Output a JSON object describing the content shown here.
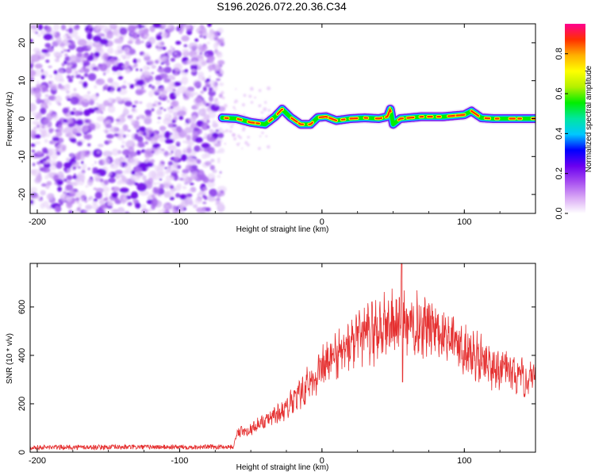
{
  "title": "S196.2026.072.20.36.C34",
  "chart_data": [
    {
      "type": "heatmap",
      "name": "spectrogram",
      "xlabel": "Height of straight line (km)",
      "ylabel": "Frequency (Hz)",
      "xlim": [
        -205,
        150
      ],
      "ylim": [
        -25,
        25
      ],
      "xticks": [
        "-200",
        "-100",
        "0",
        "100"
      ],
      "yticks": [
        "20",
        "10",
        "0",
        "-10",
        "-20"
      ],
      "colorbar": {
        "label": "Normalized spectral amplitude",
        "range": [
          0,
          0.95
        ],
        "ticks": [
          "0.0",
          "0.2",
          "0.4",
          "0.6",
          "0.8"
        ]
      },
      "noise_region_x": [
        -205,
        -70
      ],
      "signal_start_x": -70,
      "carrier_track": [
        {
          "x": -70,
          "f": 0.2
        },
        {
          "x": -60,
          "f": 0.0
        },
        {
          "x": -50,
          "f": -1.0
        },
        {
          "x": -40,
          "f": -1.5
        },
        {
          "x": -33,
          "f": 0.5
        },
        {
          "x": -28,
          "f": 2.5
        },
        {
          "x": -22,
          "f": 0.3
        },
        {
          "x": -15,
          "f": -1.5
        },
        {
          "x": -8,
          "f": -1.5
        },
        {
          "x": -3,
          "f": 0.3
        },
        {
          "x": 3,
          "f": 0.5
        },
        {
          "x": 10,
          "f": -0.5
        },
        {
          "x": 20,
          "f": 0.0
        },
        {
          "x": 30,
          "f": 0.2
        },
        {
          "x": 40,
          "f": 0.0
        },
        {
          "x": 46,
          "f": 0.5
        },
        {
          "x": 48,
          "f": 2.5
        },
        {
          "x": 50,
          "f": -1.5
        },
        {
          "x": 55,
          "f": 0.0
        },
        {
          "x": 70,
          "f": 0.5
        },
        {
          "x": 85,
          "f": 0.5
        },
        {
          "x": 100,
          "f": 1.0
        },
        {
          "x": 105,
          "f": 2.0
        },
        {
          "x": 112,
          "f": 0.2
        },
        {
          "x": 120,
          "f": 0.0
        },
        {
          "x": 135,
          "f": 0.0
        },
        {
          "x": 150,
          "f": 0.0
        }
      ]
    },
    {
      "type": "line",
      "name": "snr",
      "xlabel": "Height of straight line (km)",
      "ylabel": "SNR (10 * v/v)",
      "xlim": [
        -205,
        150
      ],
      "ylim": [
        0,
        780
      ],
      "xticks": [
        "-200",
        "-100",
        "0",
        "100"
      ],
      "yticks": [
        "0",
        "200",
        "400",
        "600"
      ],
      "color": "#e53030",
      "envelope": [
        {
          "x": -205,
          "y": 20
        },
        {
          "x": -62,
          "y": 22
        },
        {
          "x": -60,
          "y": 80
        },
        {
          "x": -50,
          "y": 95
        },
        {
          "x": -40,
          "y": 130
        },
        {
          "x": -30,
          "y": 160
        },
        {
          "x": -20,
          "y": 210
        },
        {
          "x": -10,
          "y": 280
        },
        {
          "x": 0,
          "y": 340
        },
        {
          "x": 10,
          "y": 400
        },
        {
          "x": 20,
          "y": 440
        },
        {
          "x": 30,
          "y": 480
        },
        {
          "x": 40,
          "y": 510
        },
        {
          "x": 50,
          "y": 530
        },
        {
          "x": 60,
          "y": 530
        },
        {
          "x": 70,
          "y": 525
        },
        {
          "x": 80,
          "y": 505
        },
        {
          "x": 90,
          "y": 470
        },
        {
          "x": 100,
          "y": 430
        },
        {
          "x": 110,
          "y": 390
        },
        {
          "x": 120,
          "y": 355
        },
        {
          "x": 130,
          "y": 330
        },
        {
          "x": 140,
          "y": 305
        },
        {
          "x": 150,
          "y": 290
        }
      ],
      "spike": {
        "x": 56,
        "y": 780
      },
      "dip": {
        "x": 56,
        "y": 290
      }
    }
  ],
  "colors": {
    "colormap": [
      "#ffffff",
      "#d9a8f5",
      "#a64df0",
      "#6a00f0",
      "#0000ff",
      "#00c8ff",
      "#00e6a0",
      "#00ee00",
      "#b4f000",
      "#ffff00",
      "#ffb000",
      "#ff3000",
      "#ff0090"
    ]
  }
}
